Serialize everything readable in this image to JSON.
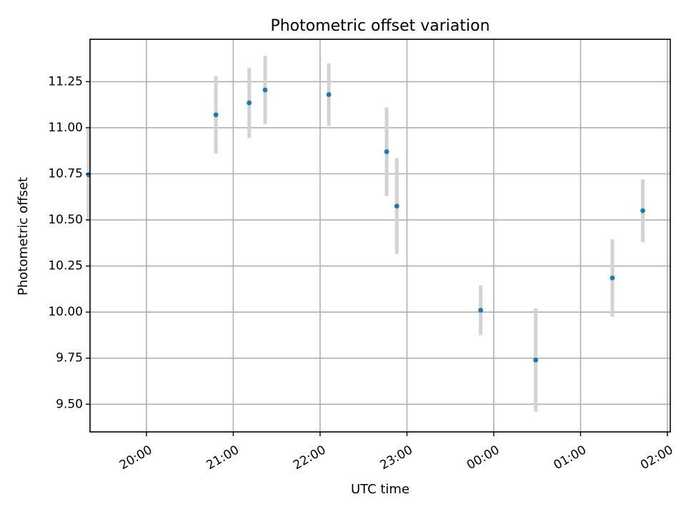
{
  "chart_data": {
    "type": "scatter",
    "title": "Photometric offset variation",
    "xlabel": "UTC time",
    "ylabel": "Photometric offset",
    "x_axis_type": "time",
    "x_ticks": [
      "20:00",
      "21:00",
      "22:00",
      "23:00",
      "00:00",
      "01:00",
      "02:00"
    ],
    "y_ticks": [
      "9.50",
      "9.75",
      "10.00",
      "10.25",
      "10.50",
      "10.75",
      "11.00",
      "11.25"
    ],
    "xlim": [
      "19:21",
      "02:02"
    ],
    "ylim": [
      9.35,
      11.48
    ],
    "grid": true,
    "marker_color": "#1f77b4",
    "errorbar_color": "#d3d3d3",
    "points": [
      {
        "time": "19:20",
        "y": 10.745,
        "err": 0.25
      },
      {
        "time": "20:48",
        "y": 11.07,
        "err": 0.21
      },
      {
        "time": "21:11",
        "y": 11.135,
        "err": 0.19
      },
      {
        "time": "21:22",
        "y": 11.205,
        "err": 0.185
      },
      {
        "time": "22:06",
        "y": 11.18,
        "err": 0.17
      },
      {
        "time": "22:46",
        "y": 10.87,
        "err": 0.24
      },
      {
        "time": "22:53",
        "y": 10.575,
        "err": 0.26
      },
      {
        "time": "23:51",
        "y": 10.01,
        "err": 0.135
      },
      {
        "time": "00:29",
        "y": 9.74,
        "err": 0.28
      },
      {
        "time": "01:22",
        "y": 10.185,
        "err": 0.21
      },
      {
        "time": "01:43",
        "y": 10.55,
        "err": 0.17
      }
    ]
  }
}
